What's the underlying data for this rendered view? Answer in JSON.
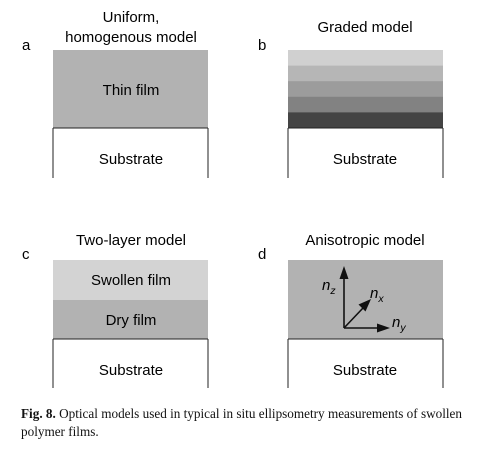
{
  "panels": {
    "a": {
      "letter": "a",
      "title_line1": "Uniform,",
      "title_line2": "homogenous model",
      "film_label": "Thin film",
      "substrate_label": "Substrate",
      "film_color": "#b2b2b2"
    },
    "b": {
      "letter": "b",
      "title": "Graded model",
      "substrate_label": "Substrate",
      "layer_colors": [
        "#d0d0d0",
        "#b6b6b6",
        "#9c9c9c",
        "#828282",
        "#444444"
      ]
    },
    "c": {
      "letter": "c",
      "title": "Two-layer model",
      "swollen_label": "Swollen film",
      "dry_label": "Dry film",
      "substrate_label": "Substrate",
      "swollen_color": "#d3d3d3",
      "dry_color": "#b2b2b2"
    },
    "d": {
      "letter": "d",
      "title": "Anisotropic model",
      "nz_base": "n",
      "nz_sub": "z",
      "nx_base": "n",
      "nx_sub": "x",
      "ny_base": "n",
      "ny_sub": "y",
      "substrate_label": "Substrate",
      "film_color": "#b2b2b2"
    }
  },
  "caption": {
    "label": "Fig. 8.",
    "text": "Optical models used in typical in situ ellipsometry measurements of swollen polymer films."
  }
}
